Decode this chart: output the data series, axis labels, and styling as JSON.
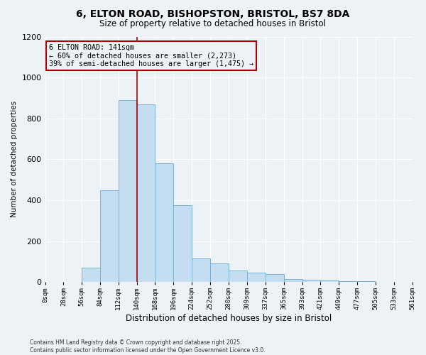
{
  "title_line1": "6, ELTON ROAD, BISHOPSTON, BRISTOL, BS7 8DA",
  "title_line2": "Size of property relative to detached houses in Bristol",
  "xlabel": "Distribution of detached houses by size in Bristol",
  "ylabel": "Number of detached properties",
  "bins": [
    0,
    28,
    56,
    84,
    112,
    140,
    168,
    196,
    224,
    252,
    280,
    309,
    337,
    365,
    393,
    421,
    449,
    477,
    505,
    533,
    561
  ],
  "counts": [
    0,
    0,
    70,
    450,
    890,
    870,
    580,
    375,
    115,
    90,
    55,
    45,
    40,
    15,
    10,
    8,
    5,
    3,
    2,
    0
  ],
  "bar_color": "#c5ddf0",
  "bar_edge_color": "#7ab3d4",
  "red_line_x": 140,
  "ylim": [
    0,
    1200
  ],
  "yticks": [
    0,
    200,
    400,
    600,
    800,
    1000,
    1200
  ],
  "annotation_title": "6 ELTON ROAD: 141sqm",
  "annotation_line2": "← 60% of detached houses are smaller (2,273)",
  "annotation_line3": "39% of semi-detached houses are larger (1,475) →",
  "annotation_box_color": "#aa0000",
  "footer_line1": "Contains HM Land Registry data © Crown copyright and database right 2025.",
  "footer_line2": "Contains public sector information licensed under the Open Government Licence v3.0.",
  "bg_color": "#edf2f7",
  "grid_color": "#ffffff"
}
